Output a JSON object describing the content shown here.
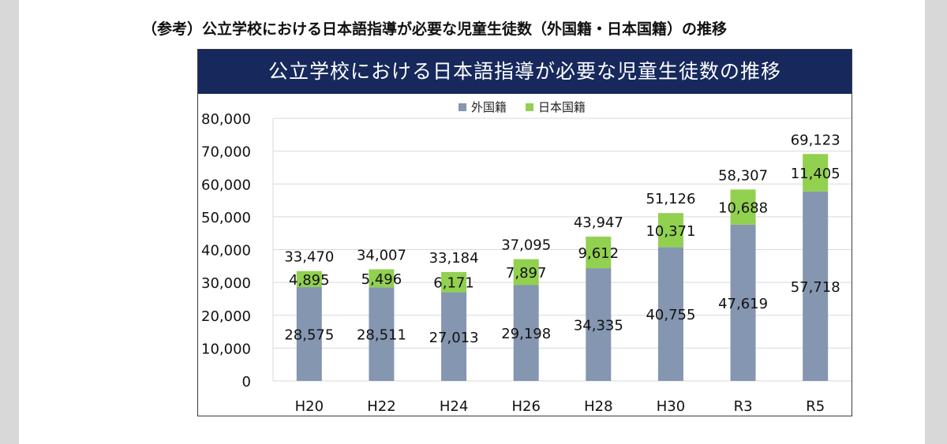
{
  "slide": {
    "title": "（参考）公立学校における日本語指導が必要な児童生徒数（外国籍・日本国籍）の推移"
  },
  "colors": {
    "header_bg": "#16285c",
    "foreign": "#8496b0",
    "japanese": "#92d050",
    "grid": "#d9d9d9"
  },
  "chart_data": {
    "type": "bar",
    "stacked": true,
    "title": "公立学校における日本語指導が必要な児童生徒数の推移",
    "categories": [
      "H20",
      "H22",
      "H24",
      "H26",
      "H28",
      "H30",
      "R3",
      "R5"
    ],
    "series": [
      {
        "name": "外国籍",
        "values": [
          28575,
          28511,
          27013,
          29198,
          34335,
          40755,
          47619,
          57718
        ]
      },
      {
        "name": "日本国籍",
        "values": [
          4895,
          5496,
          6171,
          7897,
          9612,
          10371,
          10688,
          11405
        ]
      }
    ],
    "totals": [
      33470,
      34007,
      33184,
      37095,
      43947,
      51126,
      58307,
      69123
    ],
    "value_labels": {
      "foreign": [
        "28,575",
        "28,511",
        "27,013",
        "29,198",
        "34,335",
        "40,755",
        "47,619",
        "57,718"
      ],
      "japanese": [
        "4,895",
        "5,496",
        "6,171",
        "7,897",
        "9,612",
        "10,371",
        "10,688",
        "11,405"
      ],
      "totals": [
        "33,470",
        "34,007",
        "33,184",
        "37,095",
        "43,947",
        "51,126",
        "58,307",
        "69,123"
      ]
    },
    "ylim": [
      0,
      80000
    ],
    "yticks": [
      0,
      10000,
      20000,
      30000,
      40000,
      50000,
      60000,
      70000,
      80000
    ],
    "ytick_labels": [
      "0",
      "10,000",
      "20,000",
      "30,000",
      "40,000",
      "50,000",
      "60,000",
      "70,000",
      "80,000"
    ],
    "legend_position": "top-center",
    "grid": true
  }
}
